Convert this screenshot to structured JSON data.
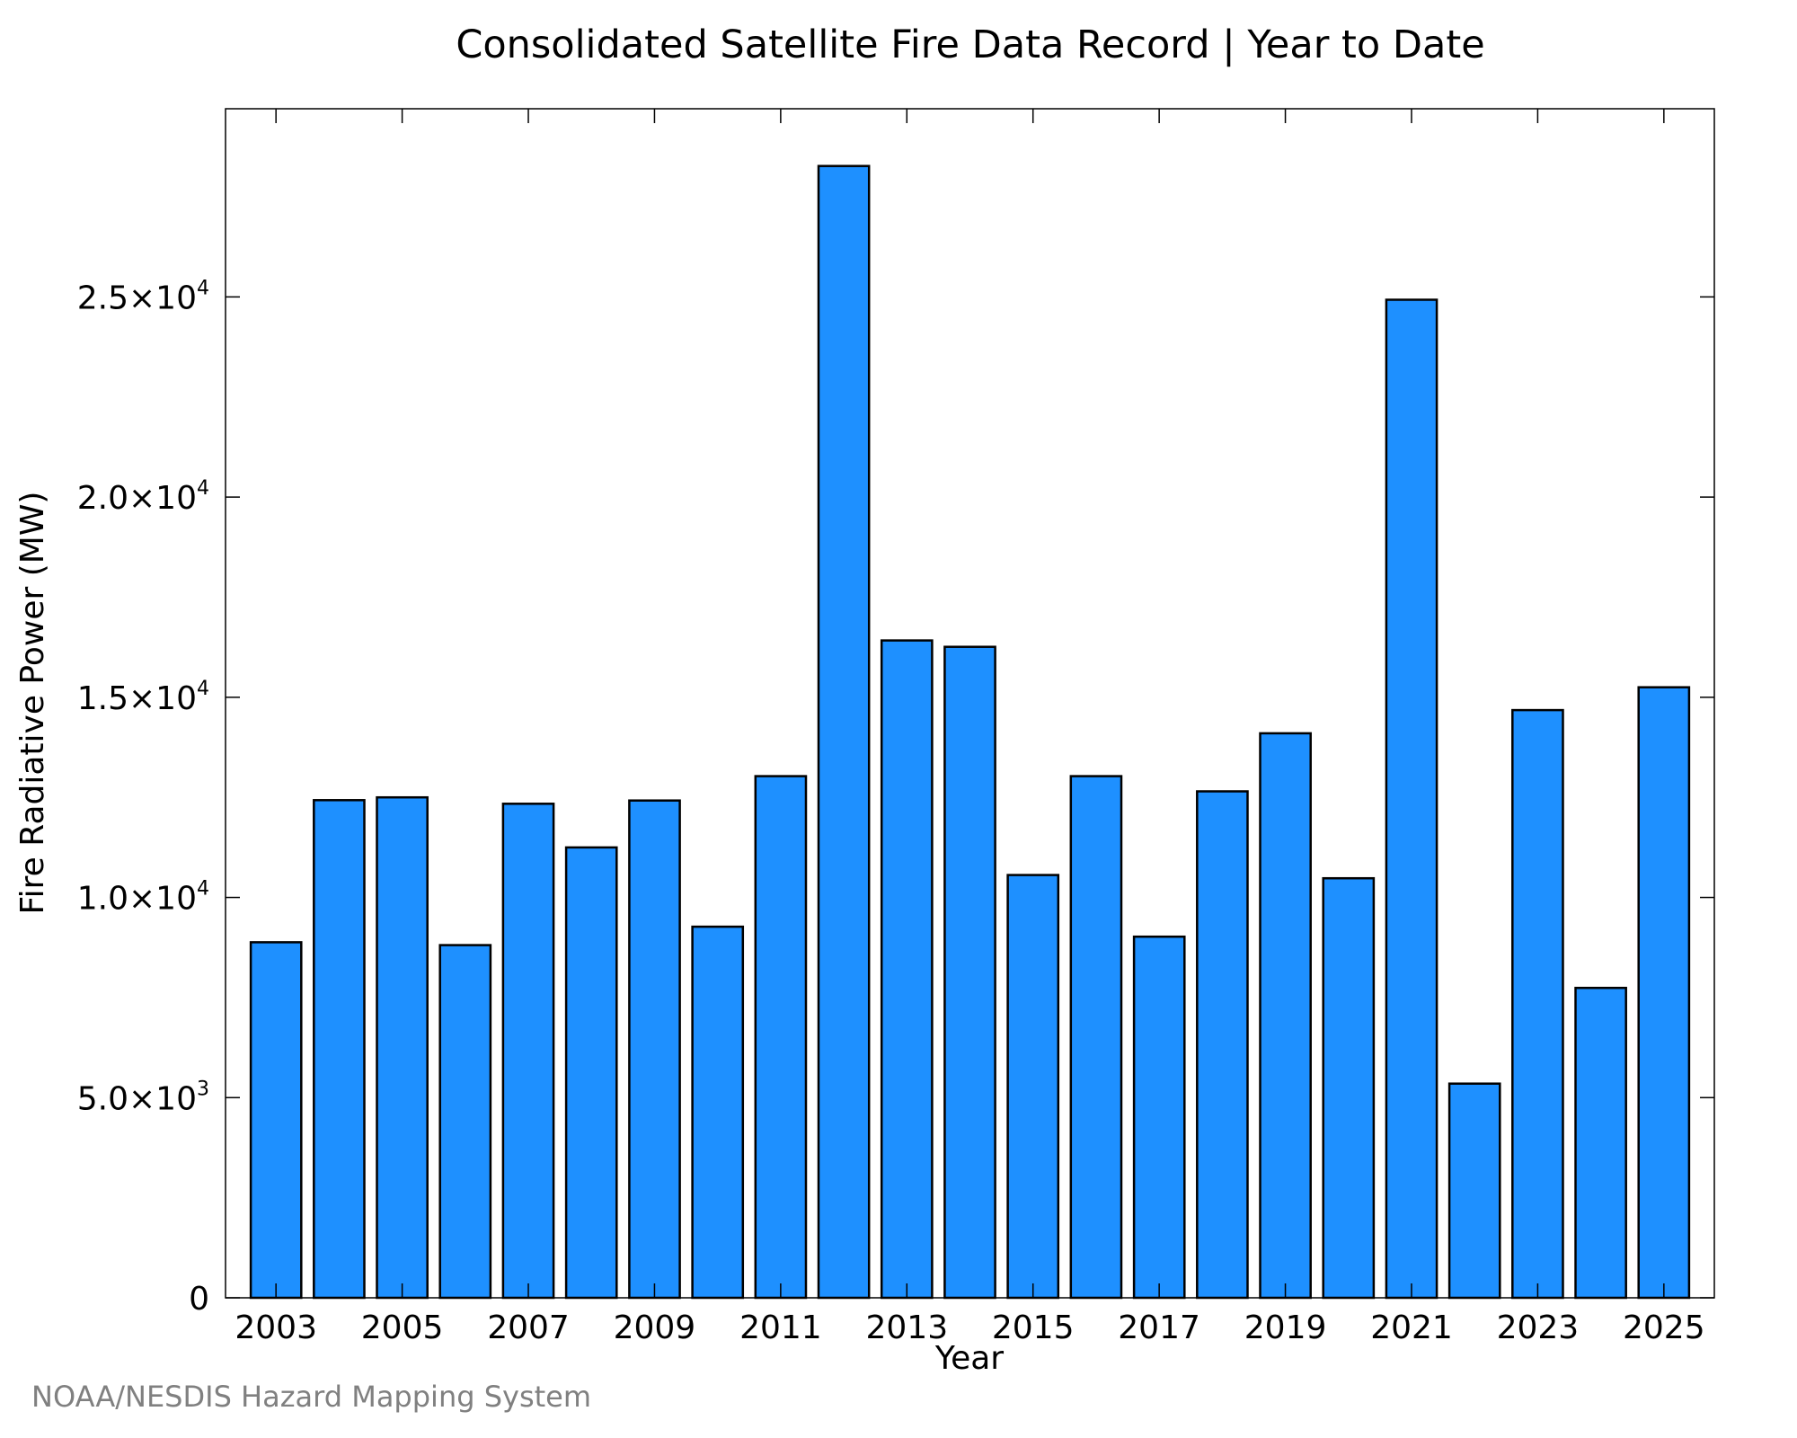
{
  "chart_data": {
    "type": "bar",
    "title": "Consolidated Satellite Fire Data Record | Year to Date",
    "xlabel": "Year",
    "ylabel": "Fire Radiative Power (MW)",
    "categories": [
      2003,
      2004,
      2005,
      2006,
      2007,
      2008,
      2009,
      2010,
      2011,
      2012,
      2013,
      2014,
      2015,
      2016,
      2017,
      2018,
      2019,
      2020,
      2021,
      2022,
      2023,
      2024,
      2025
    ],
    "values": [
      8880,
      12430,
      12500,
      8810,
      12340,
      11250,
      12420,
      9270,
      13030,
      28270,
      16420,
      16260,
      10560,
      13030,
      9020,
      12650,
      14100,
      10480,
      24930,
      5350,
      14680,
      7740,
      15250
    ],
    "ylim": [
      0,
      29700
    ],
    "xlim": [
      2002.2,
      2025.8
    ],
    "x_tick_labels": [
      "2003",
      "2005",
      "2007",
      "2009",
      "2011",
      "2013",
      "2015",
      "2017",
      "2019",
      "2021",
      "2023",
      "2025"
    ],
    "y_ticks": [
      {
        "value": 0,
        "mantissa": "0",
        "exponent": ""
      },
      {
        "value": 5000,
        "mantissa": "5.0×10",
        "exponent": "3"
      },
      {
        "value": 10000,
        "mantissa": "1.0×10",
        "exponent": "4"
      },
      {
        "value": 15000,
        "mantissa": "1.5×10",
        "exponent": "4"
      },
      {
        "value": 20000,
        "mantissa": "2.0×10",
        "exponent": "4"
      },
      {
        "value": 25000,
        "mantissa": "2.5×10",
        "exponent": "4"
      }
    ],
    "grid": false,
    "bar_color": "#1e90ff",
    "bar_edge_color": "#000000",
    "source": "NOAA/NESDIS Hazard Mapping System"
  }
}
